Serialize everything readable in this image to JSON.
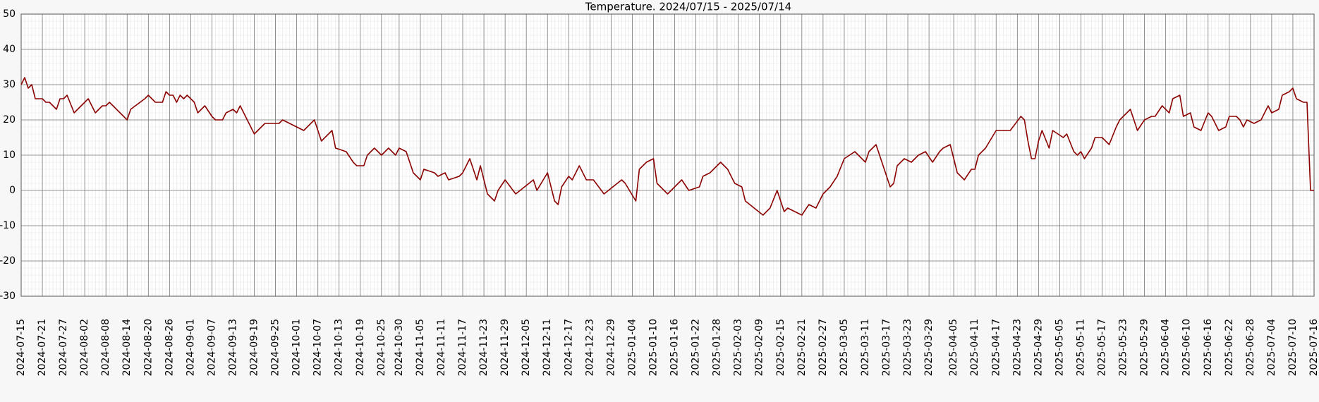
{
  "chart_data": {
    "type": "line",
    "title": "Temperature. 2024/07/15 - 2025/07/14",
    "x": [
      "2024-07-15",
      "2024-07-16",
      "2024-07-17",
      "2024-07-18",
      "2024-07-19",
      "2024-07-21",
      "2024-07-22",
      "2024-07-23",
      "2024-07-25",
      "2024-07-26",
      "2024-07-27",
      "2024-07-28",
      "2024-07-30",
      "2024-08-03",
      "2024-08-05",
      "2024-08-07",
      "2024-08-08",
      "2024-08-09",
      "2024-08-10",
      "2024-08-12",
      "2024-08-14",
      "2024-08-15",
      "2024-08-19",
      "2024-08-20",
      "2024-08-22",
      "2024-08-24",
      "2024-08-25",
      "2024-08-26",
      "2024-08-27",
      "2024-08-28",
      "2024-08-29",
      "2024-08-30",
      "2024-08-31",
      "2024-09-02",
      "2024-09-03",
      "2024-09-05",
      "2024-09-07",
      "2024-09-08",
      "2024-09-10",
      "2024-09-11",
      "2024-09-13",
      "2024-09-14",
      "2024-09-15",
      "2024-09-16",
      "2024-09-18",
      "2024-09-19",
      "2024-09-22",
      "2024-09-26",
      "2024-09-27",
      "2024-09-29",
      "2024-10-01",
      "2024-10-03",
      "2024-10-06",
      "2024-10-08",
      "2024-10-11",
      "2024-10-12",
      "2024-10-15",
      "2024-10-17",
      "2024-10-18",
      "2024-10-20",
      "2024-10-21",
      "2024-10-23",
      "2024-10-25",
      "2024-10-27",
      "2024-10-29",
      "2024-10-30",
      "2024-11-01",
      "2024-11-03",
      "2024-11-05",
      "2024-11-06",
      "2024-11-09",
      "2024-11-10",
      "2024-11-12",
      "2024-11-13",
      "2024-11-16",
      "2024-11-17",
      "2024-11-19",
      "2024-11-21",
      "2024-11-22",
      "2024-11-24",
      "2024-11-26",
      "2024-11-27",
      "2024-11-29",
      "2024-12-02",
      "2024-12-07",
      "2024-12-08",
      "2024-12-11",
      "2024-12-13",
      "2024-12-14",
      "2024-12-15",
      "2024-12-17",
      "2024-12-18",
      "2024-12-20",
      "2024-12-22",
      "2024-12-24",
      "2024-12-27",
      "2025-01-01",
      "2025-01-02",
      "2025-01-05",
      "2025-01-06",
      "2025-01-08",
      "2025-01-10",
      "2025-01-11",
      "2025-01-14",
      "2025-01-16",
      "2025-01-18",
      "2025-01-20",
      "2025-01-23",
      "2025-01-24",
      "2025-01-26",
      "2025-01-28",
      "2025-01-29",
      "2025-01-31",
      "2025-02-02",
      "2025-02-04",
      "2025-02-05",
      "2025-02-10",
      "2025-02-12",
      "2025-02-14",
      "2025-02-16",
      "2025-02-17",
      "2025-02-19",
      "2025-02-21",
      "2025-02-23",
      "2025-02-25",
      "2025-02-27",
      "2025-03-01",
      "2025-03-03",
      "2025-03-05",
      "2025-03-08",
      "2025-03-11",
      "2025-03-12",
      "2025-03-14",
      "2025-03-16",
      "2025-03-18",
      "2025-03-19",
      "2025-03-20",
      "2025-03-22",
      "2025-03-24",
      "2025-03-26",
      "2025-03-28",
      "2025-03-30",
      "2025-04-01",
      "2025-04-02",
      "2025-04-04",
      "2025-04-06",
      "2025-04-08",
      "2025-04-10",
      "2025-04-11",
      "2025-04-12",
      "2025-04-14",
      "2025-04-17",
      "2025-04-21",
      "2025-04-24",
      "2025-04-25",
      "2025-04-26",
      "2025-04-27",
      "2025-04-28",
      "2025-04-29",
      "2025-04-30",
      "2025-05-02",
      "2025-05-03",
      "2025-05-06",
      "2025-05-07",
      "2025-05-09",
      "2025-05-10",
      "2025-05-11",
      "2025-05-12",
      "2025-05-14",
      "2025-05-15",
      "2025-05-17",
      "2025-05-19",
      "2025-05-21",
      "2025-05-22",
      "2025-05-24",
      "2025-05-25",
      "2025-05-27",
      "2025-05-29",
      "2025-05-31",
      "2025-06-01",
      "2025-06-03",
      "2025-06-05",
      "2025-06-06",
      "2025-06-08",
      "2025-06-09",
      "2025-06-11",
      "2025-06-12",
      "2025-06-14",
      "2025-06-16",
      "2025-06-17",
      "2025-06-19",
      "2025-06-21",
      "2025-06-22",
      "2025-06-24",
      "2025-06-25",
      "2025-06-26",
      "2025-06-27",
      "2025-06-29",
      "2025-07-01",
      "2025-07-03",
      "2025-07-04",
      "2025-07-06",
      "2025-07-07",
      "2025-07-09",
      "2025-07-10",
      "2025-07-11",
      "2025-07-13",
      "2025-07-14",
      "2025-07-15",
      "2025-07-16"
    ],
    "values": [
      30,
      32,
      29,
      30,
      26,
      26,
      25,
      25,
      23,
      26,
      26,
      27,
      22,
      26,
      22,
      24,
      24,
      25,
      24,
      22,
      20,
      23,
      26,
      27,
      25,
      25,
      28,
      27,
      27,
      25,
      27,
      26,
      27,
      25,
      22,
      24,
      21,
      20,
      20,
      22,
      23,
      22,
      24,
      22,
      18,
      16,
      19,
      19,
      20,
      19,
      18,
      17,
      20,
      14,
      17,
      12,
      11,
      8,
      7,
      7,
      10,
      12,
      10,
      12,
      10,
      12,
      11,
      5,
      3,
      6,
      5,
      4,
      5,
      3,
      4,
      5,
      9,
      3,
      7,
      -1,
      -3,
      0,
      3,
      -1,
      3,
      0,
      5,
      -3,
      -4,
      1,
      4,
      3,
      7,
      3,
      3,
      -1,
      3,
      2,
      -3,
      6,
      8,
      9,
      2,
      -1,
      1,
      3,
      0,
      1,
      4,
      5,
      7,
      8,
      6,
      2,
      1,
      -3,
      -7,
      -5,
      0,
      -6,
      -5,
      -6,
      -7,
      -4,
      -5,
      -1,
      1,
      4,
      9,
      11,
      8,
      11,
      13,
      7,
      1,
      2,
      7,
      9,
      8,
      10,
      11,
      8,
      11,
      12,
      13,
      5,
      3,
      6,
      6,
      10,
      12,
      17,
      17,
      21,
      20,
      14,
      9,
      9,
      14,
      17,
      12,
      17,
      15,
      16,
      11,
      10,
      11,
      9,
      12,
      15,
      15,
      13,
      18,
      20,
      22,
      23,
      17,
      20,
      21,
      21,
      24,
      22,
      26,
      27,
      21,
      22,
      18,
      17,
      22,
      21,
      17,
      18,
      21,
      21,
      20,
      18,
      20,
      19,
      20,
      24,
      22,
      23,
      27,
      28,
      29,
      26,
      25,
      25,
      0,
      0
    ],
    "color": "#8b0000",
    "xlim": [
      "2024-07-15",
      "2025-07-16"
    ],
    "xticks": [
      "2024-07-15",
      "2024-07-21",
      "2024-07-27",
      "2024-08-02",
      "2024-08-08",
      "2024-08-14",
      "2024-08-20",
      "2024-08-26",
      "2024-09-01",
      "2024-09-07",
      "2024-09-13",
      "2024-09-19",
      "2024-09-25",
      "2024-10-01",
      "2024-10-07",
      "2024-10-13",
      "2024-10-19",
      "2024-10-25",
      "2024-10-30",
      "2024-11-05",
      "2024-11-11",
      "2024-11-17",
      "2024-11-23",
      "2024-11-29",
      "2024-12-05",
      "2024-12-11",
      "2024-12-17",
      "2024-12-23",
      "2024-12-29",
      "2025-01-04",
      "2025-01-10",
      "2025-01-16",
      "2025-01-22",
      "2025-01-28",
      "2025-02-03",
      "2025-02-09",
      "2025-02-15",
      "2025-02-21",
      "2025-02-27",
      "2025-03-05",
      "2025-03-11",
      "2025-03-17",
      "2025-03-23",
      "2025-03-29",
      "2025-04-05",
      "2025-04-11",
      "2025-04-17",
      "2025-04-23",
      "2025-04-29",
      "2025-05-05",
      "2025-05-11",
      "2025-05-17",
      "2025-05-23",
      "2025-05-29",
      "2025-06-04",
      "2025-06-10",
      "2025-06-16",
      "2025-06-22",
      "2025-06-28",
      "2025-07-04",
      "2025-07-10",
      "2025-07-16"
    ],
    "ylim": [
      -30,
      50
    ],
    "yticks": [
      -30,
      -20,
      -10,
      0,
      10,
      20,
      30,
      40,
      50
    ],
    "grid": true,
    "minor_grid": true
  }
}
